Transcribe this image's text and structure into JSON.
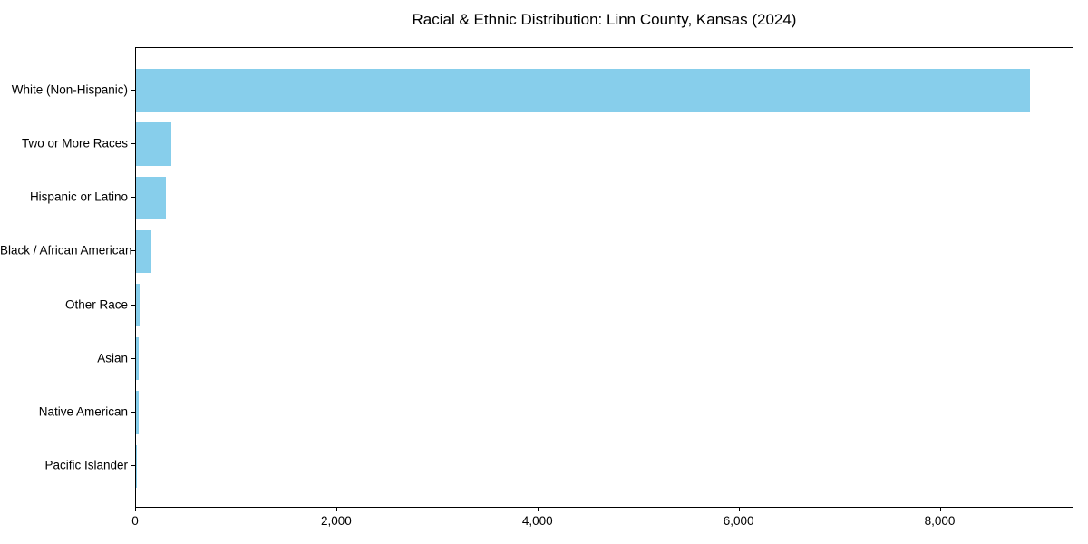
{
  "title": "Racial & Ethnic Distribution: Linn County, Kansas (2024)",
  "chart_data": {
    "type": "bar",
    "orientation": "horizontal",
    "title": "Racial & Ethnic Distribution: Linn County, Kansas (2024)",
    "xlabel": "",
    "ylabel": "",
    "categories": [
      "White (Non-Hispanic)",
      "Two or More Races",
      "Hispanic or Latino",
      "Black / African American",
      "Other Race",
      "Asian",
      "Native American",
      "Pacific Islander"
    ],
    "values": [
      8885,
      350,
      295,
      140,
      40,
      30,
      28,
      5
    ],
    "xlim": [
      0,
      9329
    ],
    "xticks": [
      0,
      2000,
      4000,
      6000,
      8000
    ],
    "xtick_labels": [
      "0",
      "2,000",
      "4,000",
      "6,000",
      "8,000"
    ],
    "bar_color": "#87CEEB",
    "text_color": "#000000",
    "grid": false,
    "legend": null
  }
}
